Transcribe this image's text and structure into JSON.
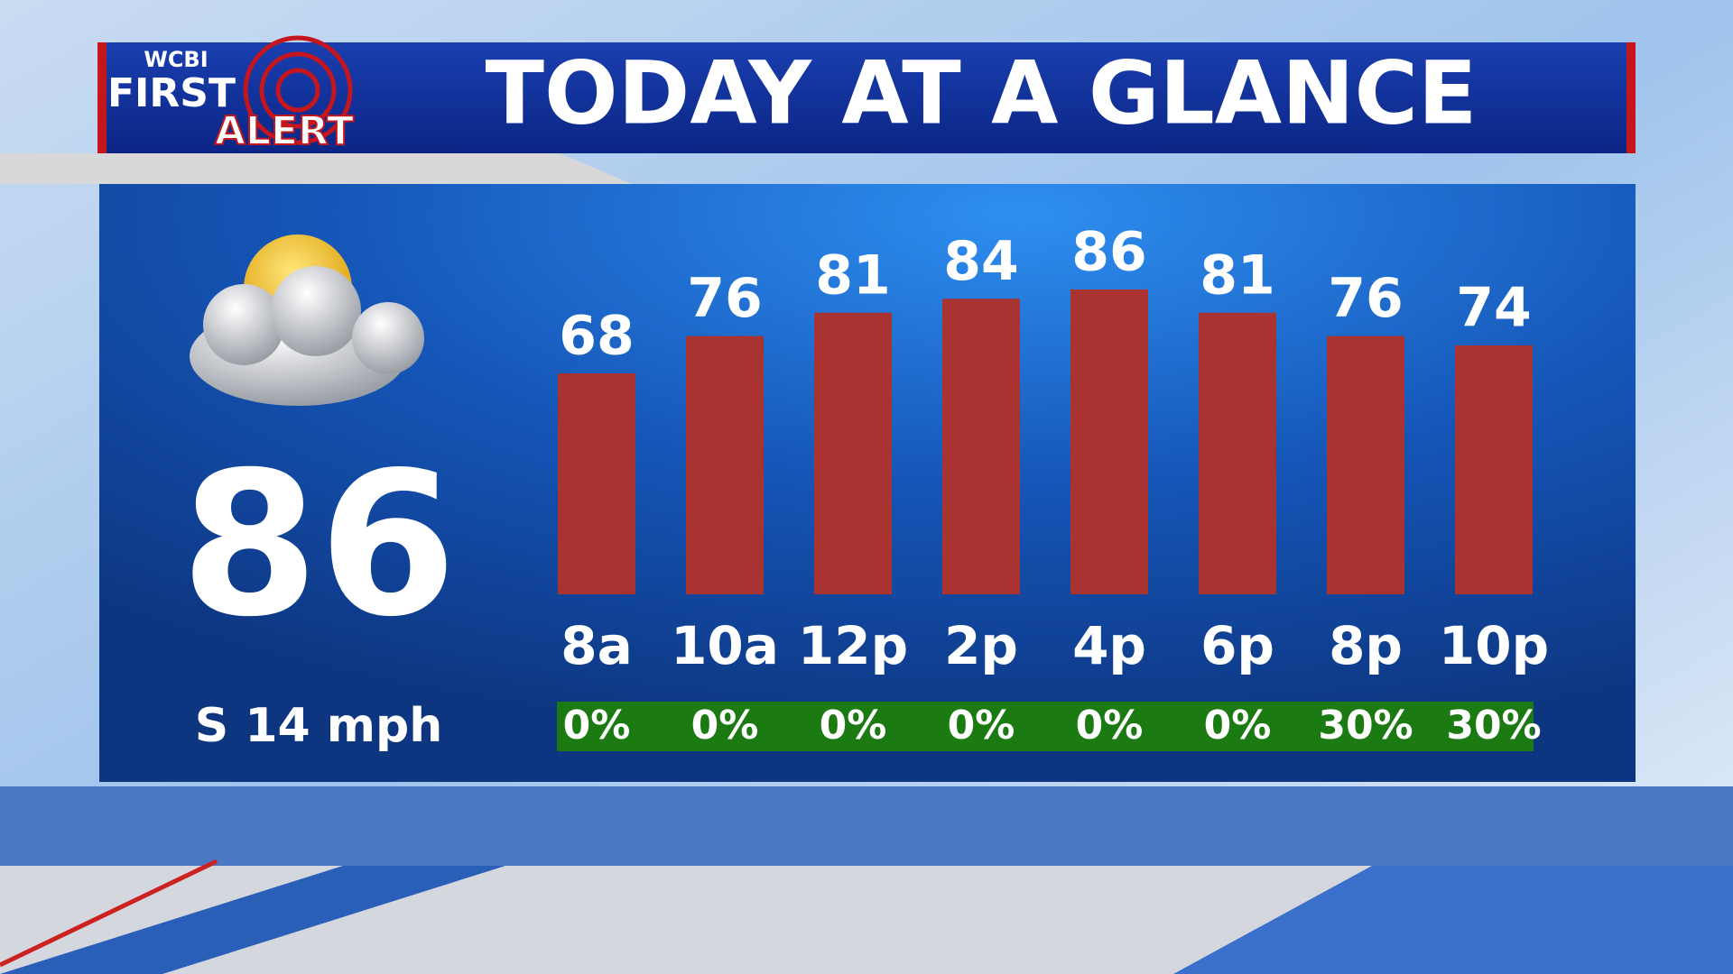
{
  "logo": {
    "station": "WCBI",
    "line1": "FIRST",
    "line2": "ALERT"
  },
  "current": {
    "temperature": 86,
    "wind": "S 14 mph"
  },
  "chart_data": {
    "type": "bar",
    "title": "TODAY AT A GLANCE",
    "categories": [
      "8a",
      "10a",
      "12p",
      "2p",
      "4p",
      "6p",
      "8p",
      "10p"
    ],
    "values": [
      68,
      76,
      81,
      84,
      86,
      81,
      76,
      74
    ],
    "color": "#a93330",
    "precip": {
      "values": [
        0,
        0,
        0,
        0,
        0,
        0,
        30,
        30
      ],
      "value_labels": [
        "0%",
        "0%",
        "0%",
        "0%",
        "0%",
        "0%",
        "30%",
        "30%"
      ],
      "color": "#1b7a12"
    }
  }
}
